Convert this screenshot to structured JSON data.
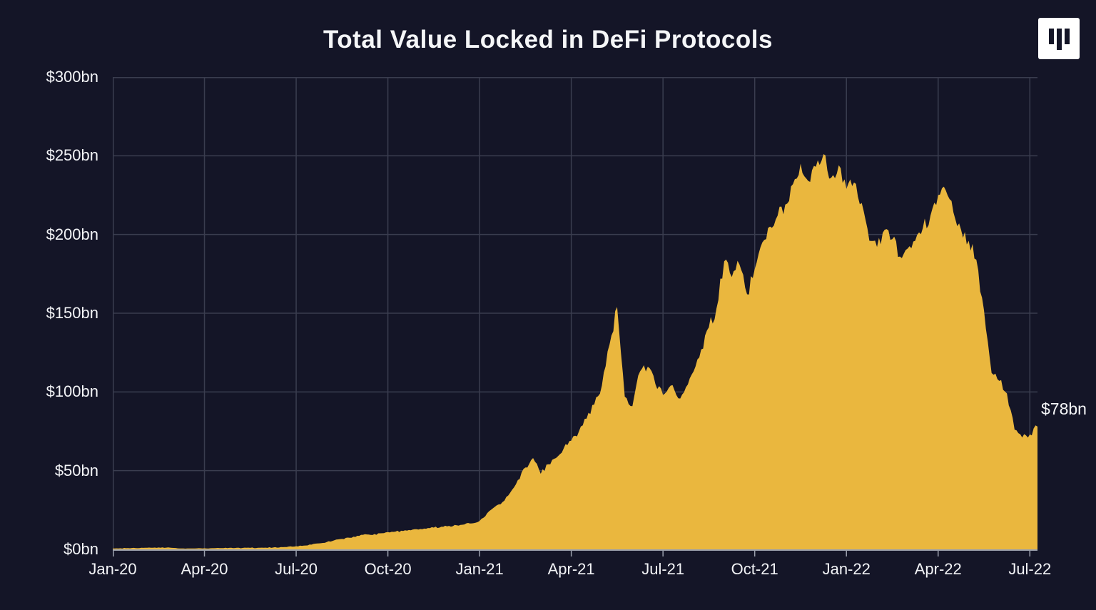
{
  "title": "Total Value Locked in DeFi Protocols",
  "annotation": {
    "label": "$78bn"
  },
  "chart_data": {
    "type": "area",
    "title": "Total Value Locked in DeFi Protocols",
    "series_name": "Total Value Locked",
    "unit": "$bn",
    "xlabel": "",
    "ylabel": "",
    "ylim": [
      0,
      300
    ],
    "x_range_months": 30.25,
    "points_per_month": 4,
    "x_start_label": "Jan-20",
    "x_tick_labels": [
      "Jan-20",
      "Apr-20",
      "Jul-20",
      "Oct-20",
      "Jan-21",
      "Apr-21",
      "Jul-21",
      "Oct-21",
      "Jan-22",
      "Apr-22",
      "Jul-22"
    ],
    "y_tick_labels": [
      "$300bn",
      "$250bn",
      "$200bn",
      "$150bn",
      "$100bn",
      "$50bn",
      "$0bn"
    ],
    "grid": true,
    "legend_position": "none",
    "end_value_label": "$78bn",
    "end_value": 78,
    "peak_value": 251,
    "colors": {
      "area": "#EAB73E",
      "background": "#141527",
      "grid": "#3A3D4F",
      "axis": "#9BA0AD",
      "text": "#F2F3F6"
    },
    "values": [
      0.6,
      0.68,
      0.75,
      0.8,
      0.95,
      1.05,
      1.2,
      1.1,
      0.9,
      0.55,
      0.6,
      0.62,
      0.68,
      0.72,
      0.78,
      0.82,
      0.86,
      0.9,
      0.95,
      1.0,
      1.1,
      1.2,
      1.45,
      1.75,
      2.0,
      2.4,
      3.0,
      3.8,
      4.6,
      5.8,
      6.6,
      7.4,
      8.6,
      9.6,
      9.1,
      10.2,
      10.9,
      11.3,
      11.7,
      12.1,
      12.6,
      13.1,
      13.8,
      14.4,
      14.9,
      15.3,
      15.8,
      16.5,
      18,
      23,
      27,
      30,
      36,
      44,
      52,
      58,
      48,
      54,
      58,
      64,
      69,
      75,
      83,
      92,
      104,
      130,
      154,
      97,
      91,
      113,
      116,
      105,
      98,
      104,
      96,
      103,
      113,
      127,
      141,
      153,
      183,
      173,
      181,
      162,
      178,
      195,
      205,
      212,
      219,
      232,
      245,
      234,
      243,
      251,
      236,
      244,
      229,
      233,
      220,
      196,
      192,
      203,
      197,
      186,
      191,
      196,
      204,
      212,
      225,
      228,
      214,
      203,
      196,
      184,
      152,
      112,
      107,
      99,
      76,
      71,
      73,
      78
    ]
  }
}
